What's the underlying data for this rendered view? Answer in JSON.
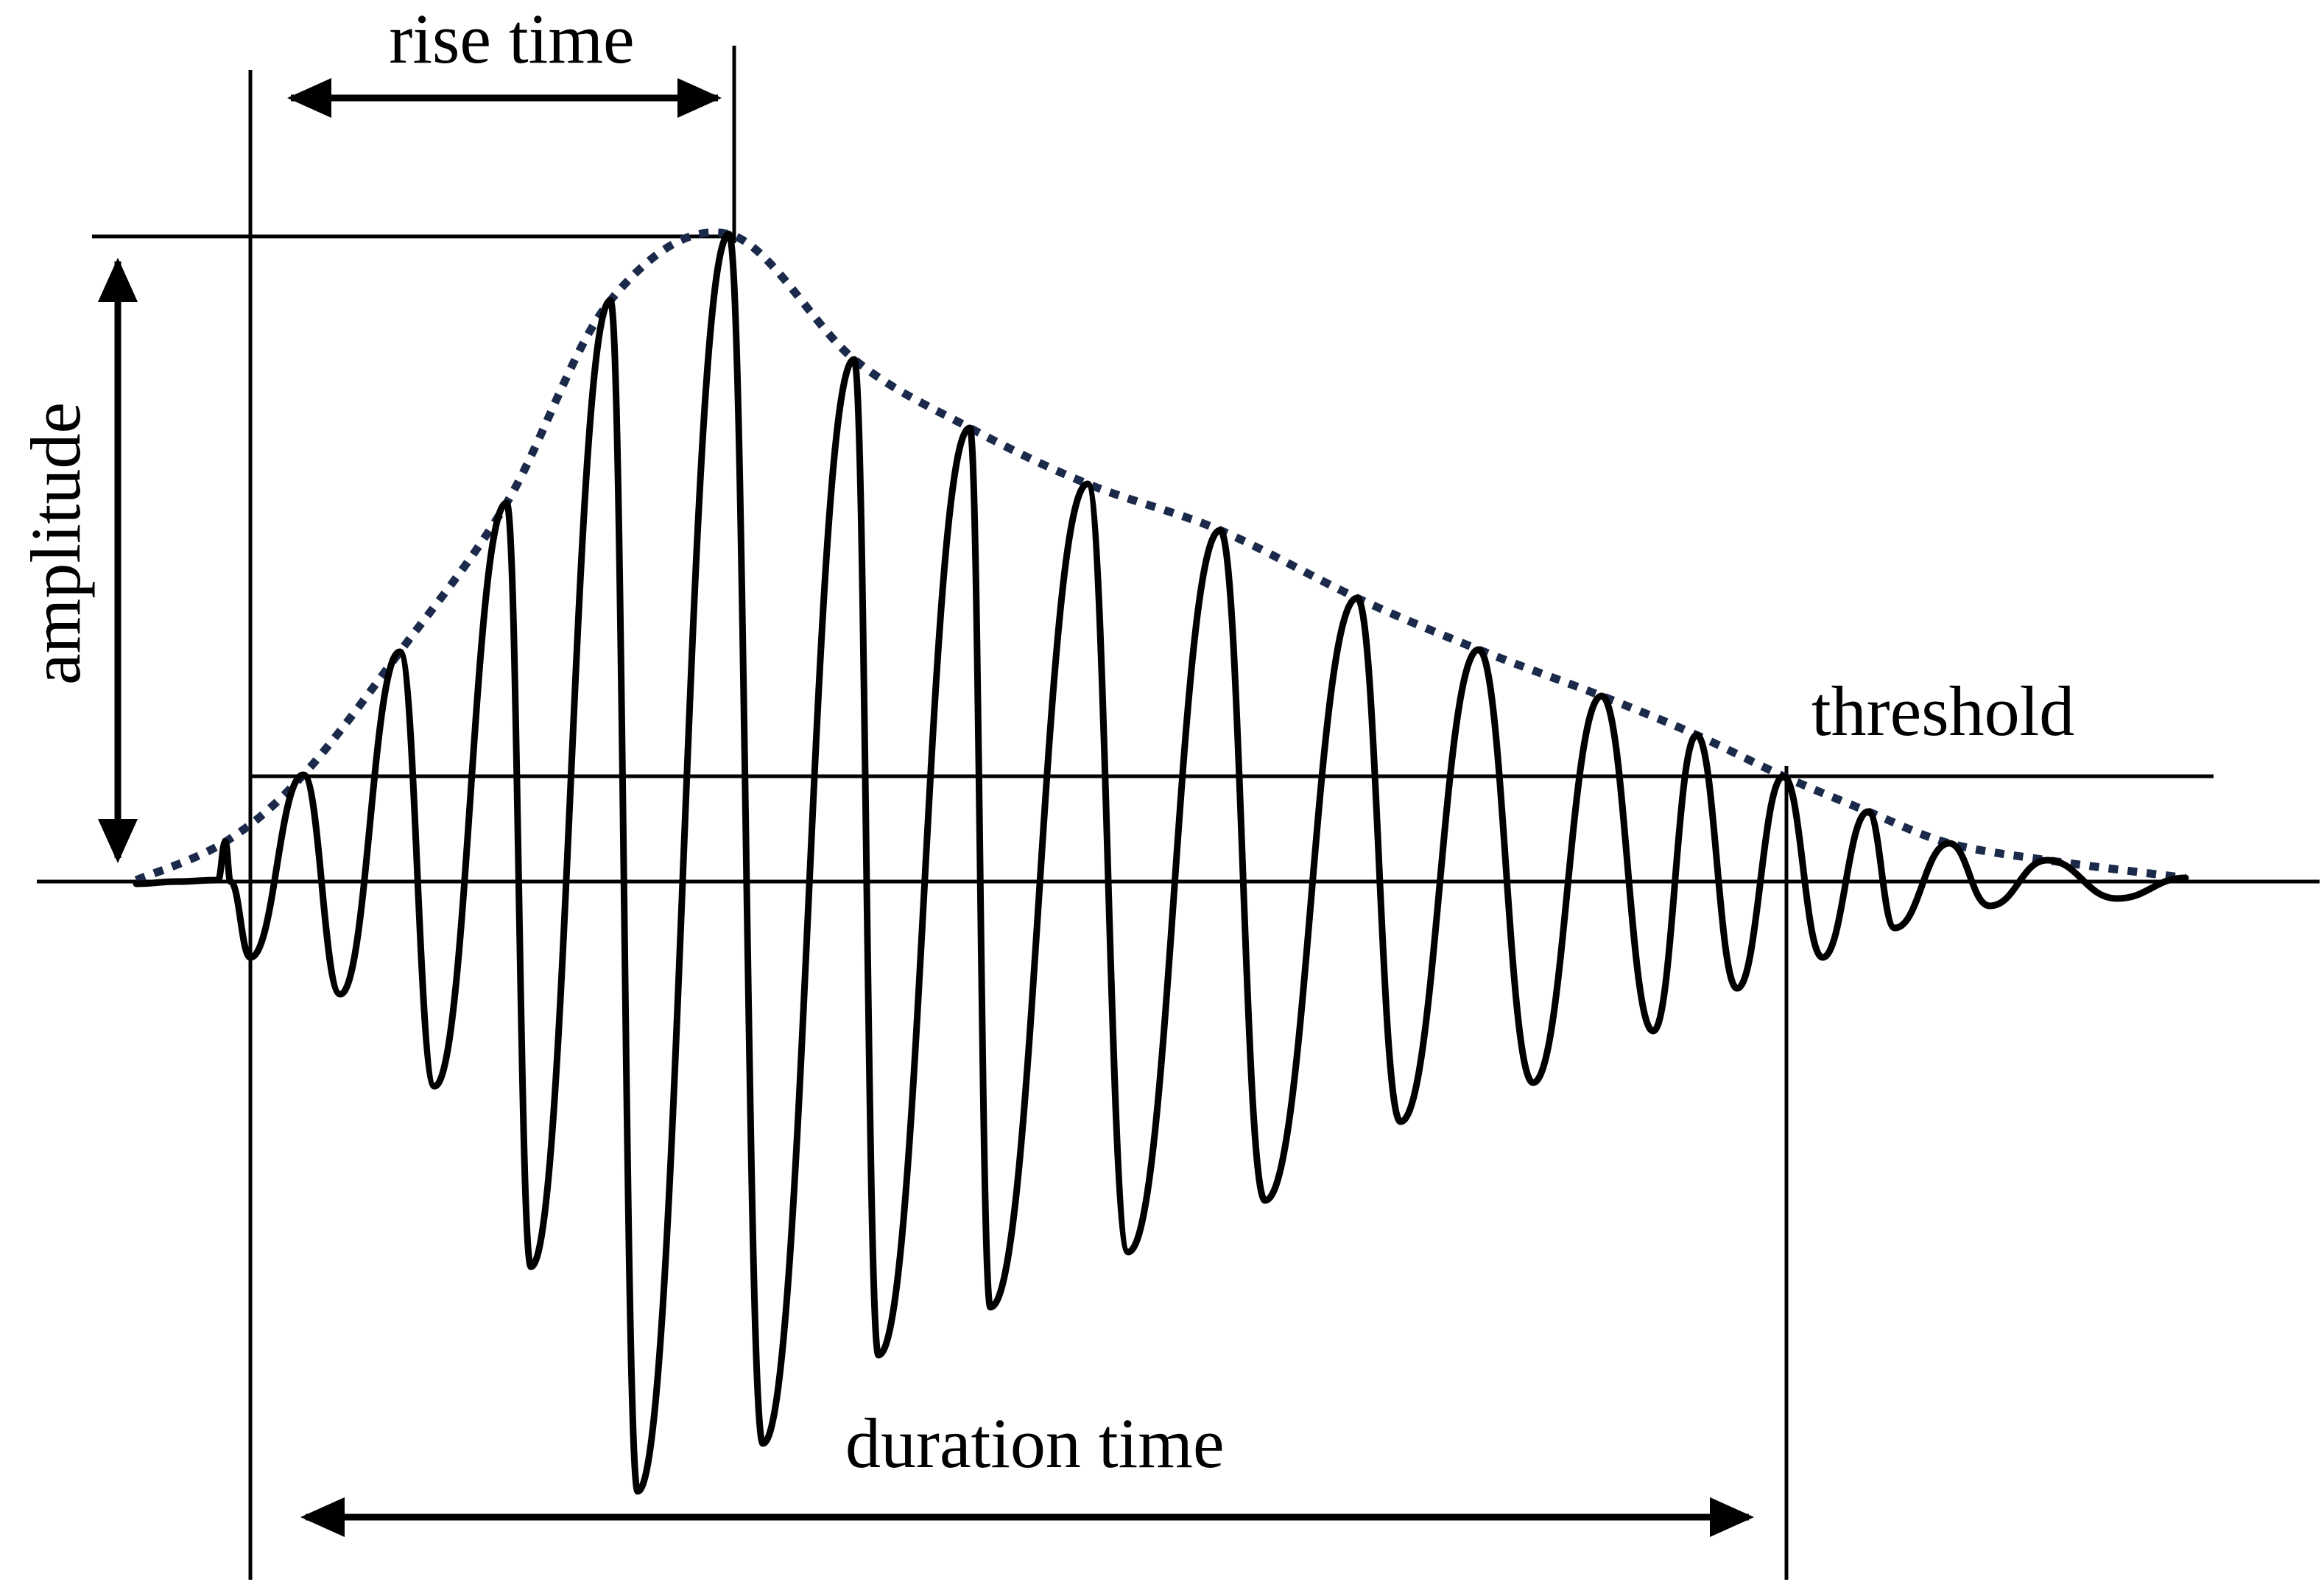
{
  "labels": {
    "rise_time": "rise time",
    "amplitude": "amplitude",
    "threshold": "threshold",
    "duration_time": "duration time"
  },
  "colors": {
    "line": "#000000",
    "envelope": "#1b2a4a",
    "background": "#ffffff"
  }
}
